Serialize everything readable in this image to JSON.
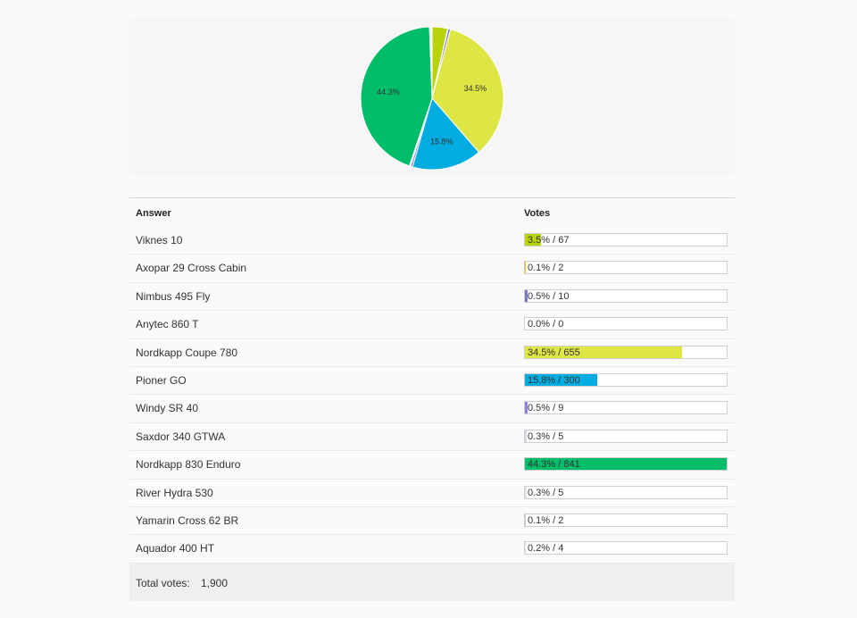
{
  "chart_data": {
    "type": "pie",
    "slices": [
      {
        "label": "Viknes 10",
        "value": 67,
        "percent_label": "",
        "color": "#b9d30a"
      },
      {
        "label": "Axopar 29 Cross Cabin",
        "value": 2,
        "percent_label": "",
        "color": "#f4c400"
      },
      {
        "label": "Nimbus 495 Fly",
        "value": 10,
        "percent_label": "",
        "color": "#7b78c9"
      },
      {
        "label": "Anytec 860 T",
        "value": 0,
        "percent_label": "",
        "color": "#999999"
      },
      {
        "label": "Nordkapp Coupe 780",
        "value": 655,
        "percent_label": "34.5%",
        "color": "#dde645"
      },
      {
        "label": "Pioner GO",
        "value": 300,
        "percent_label": "15.8%",
        "color": "#00ace0"
      },
      {
        "label": "Windy SR 40",
        "value": 9,
        "percent_label": "",
        "color": "#8e80e6"
      },
      {
        "label": "Saxdor 340 GTWA",
        "value": 5,
        "percent_label": "",
        "color": "#d5d5e6"
      },
      {
        "label": "Nordkapp 830 Enduro",
        "value": 841,
        "percent_label": "44.3%",
        "color": "#00bd6a"
      },
      {
        "label": "River Hydra 530",
        "value": 5,
        "percent_label": "",
        "color": "#e6e6e6"
      },
      {
        "label": "Yamarin Cross 62 BR",
        "value": 2,
        "percent_label": "",
        "color": "#c6c6c6"
      },
      {
        "label": "Aquador 400 HT",
        "value": 4,
        "percent_label": "",
        "color": "#e0e0ee"
      }
    ]
  },
  "table": {
    "header_answer": "Answer",
    "header_votes": "Votes",
    "rows": [
      {
        "answer": "Viknes 10",
        "votes_text": "3.5% / 67",
        "percent": 3.5,
        "color": "#b9d30a"
      },
      {
        "answer": "Axopar 29 Cross Cabin",
        "votes_text": "0.1% / 2",
        "percent": 0.1,
        "color": "#f4c400"
      },
      {
        "answer": "Nimbus 495 Fly",
        "votes_text": "0.5% / 10",
        "percent": 0.5,
        "color": "#7b78c9"
      },
      {
        "answer": "Anytec 860 T",
        "votes_text": "0.0% / 0",
        "percent": 0.0,
        "color": "#999999"
      },
      {
        "answer": "Nordkapp Coupe 780",
        "votes_text": "34.5% / 655",
        "percent": 34.5,
        "color": "#dde645"
      },
      {
        "answer": "Pioner GO",
        "votes_text": "15.8% / 300",
        "percent": 15.8,
        "color": "#00ace0"
      },
      {
        "answer": "Windy SR 40",
        "votes_text": "0.5% / 9",
        "percent": 0.5,
        "color": "#8e80e6"
      },
      {
        "answer": "Saxdor 340 GTWA",
        "votes_text": "0.3% / 5",
        "percent": 0.3,
        "color": "#d5d5e6"
      },
      {
        "answer": "Nordkapp 830 Enduro",
        "votes_text": "44.3% / 841",
        "percent": 44.3,
        "color": "#00bd6a"
      },
      {
        "answer": "River Hydra 530",
        "votes_text": "0.3% / 5",
        "percent": 0.3,
        "color": "#e6e6e6"
      },
      {
        "answer": "Yamarin Cross 62 BR",
        "votes_text": "0.1% / 2",
        "percent": 0.1,
        "color": "#c6c6c6"
      },
      {
        "answer": "Aquador 400 HT",
        "votes_text": "0.2% / 4",
        "percent": 0.2,
        "color": "#e0e0ee"
      }
    ],
    "total_label": "Total votes:",
    "total_value": "1,900"
  }
}
